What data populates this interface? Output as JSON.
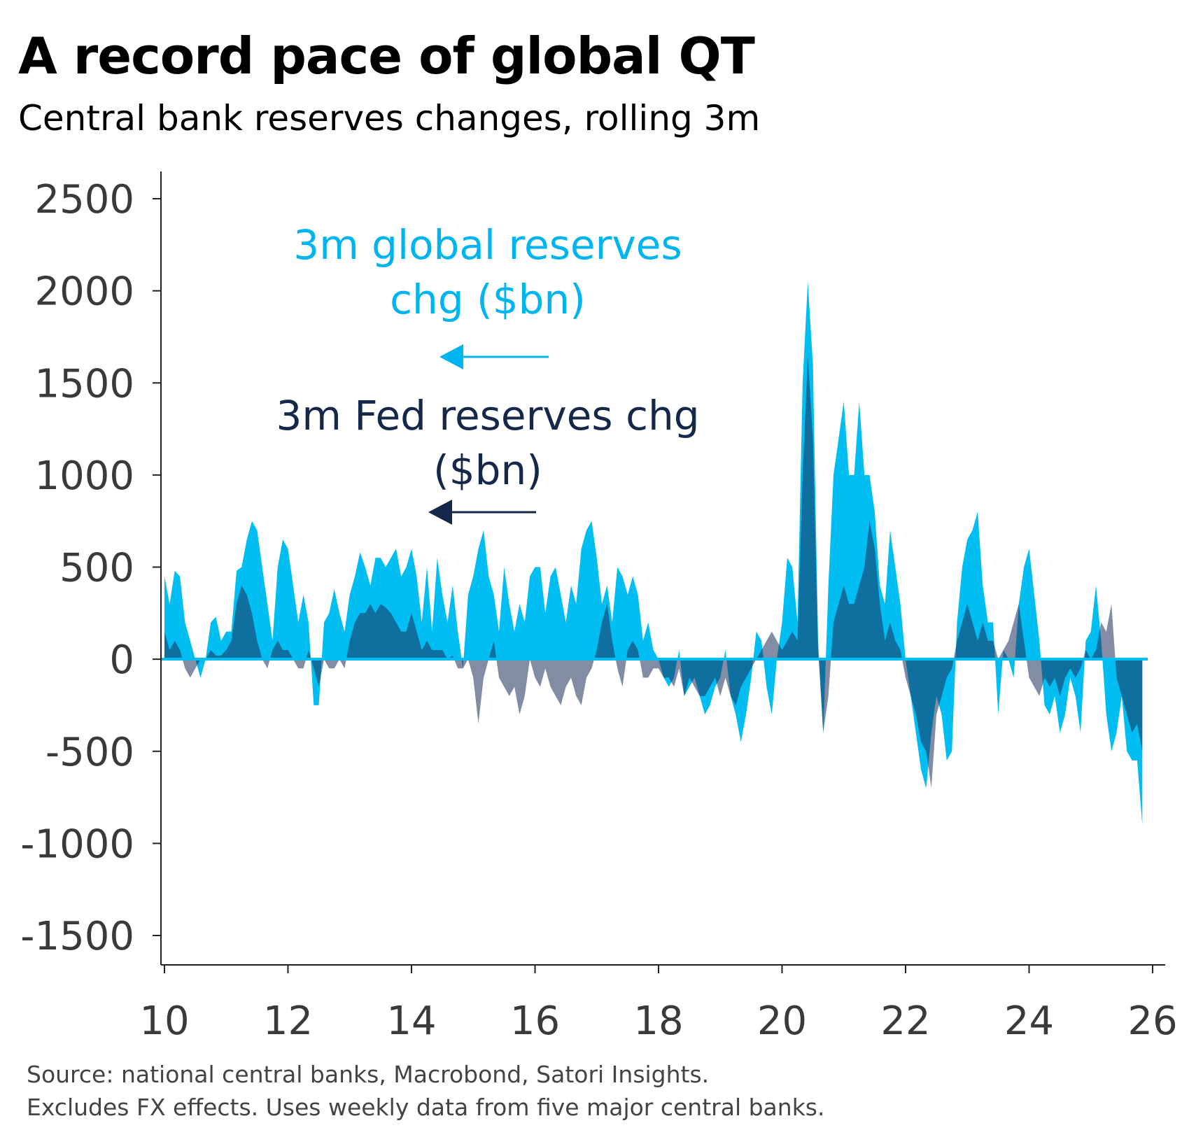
{
  "chart_data": {
    "type": "area",
    "title": "A record pace of global QT",
    "subtitle": "Central bank reserves changes, rolling 3m",
    "source_lines": [
      "Source: national central banks, Macrobond, Satori Insights.",
      "Excludes FX effects. Uses weekly data from five major central banks."
    ],
    "xlabel": "",
    "ylabel": "",
    "xlim": [
      10,
      26
    ],
    "ylim": [
      -1500,
      2500
    ],
    "x_ticks": [
      "10",
      "12",
      "14",
      "16",
      "18",
      "20",
      "22",
      "24",
      "26"
    ],
    "y_ticks": [
      "2500",
      "2000",
      "1500",
      "1000",
      "500",
      "0",
      "-500",
      "-1000",
      "-1500"
    ],
    "x_start": 10,
    "x_step_years": 0.0833333,
    "grid": false,
    "series": [
      {
        "name": "3m global reserves chg ($bn)",
        "label_lines": [
          "3m global reserves",
          "chg ($bn)"
        ],
        "color": "#00bdf2",
        "values": [
          450,
          300,
          480,
          450,
          200,
          100,
          0,
          -100,
          0,
          200,
          230,
          100,
          150,
          150,
          480,
          500,
          650,
          750,
          700,
          500,
          300,
          100,
          500,
          650,
          600,
          400,
          200,
          350,
          200,
          -250,
          -250,
          200,
          250,
          380,
          250,
          150,
          350,
          450,
          580,
          500,
          400,
          550,
          550,
          500,
          550,
          600,
          450,
          500,
          600,
          450,
          200,
          500,
          150,
          550,
          350,
          200,
          400,
          150,
          -50,
          350,
          450,
          600,
          700,
          450,
          350,
          150,
          500,
          300,
          150,
          300,
          200,
          450,
          500,
          500,
          250,
          450,
          500,
          350,
          200,
          400,
          300,
          600,
          700,
          750,
          550,
          300,
          400,
          200,
          500,
          450,
          350,
          450,
          350,
          100,
          200,
          50,
          0,
          -100,
          -150,
          -100,
          50,
          -200,
          -150,
          -100,
          -200,
          -300,
          -250,
          -150,
          -100,
          50,
          -200,
          -300,
          -450,
          -300,
          -100,
          150,
          100,
          -150,
          -300,
          0,
          200,
          550,
          500,
          200,
          1500,
          2050,
          1600,
          100,
          -400,
          400,
          1000,
          1200,
          1400,
          1000,
          1000,
          1400,
          1000,
          1000,
          800,
          400,
          300,
          700,
          500,
          300,
          0,
          -200,
          -400,
          -600,
          -700,
          -400,
          -200,
          -300,
          -550,
          -500,
          200,
          500,
          650,
          700,
          800,
          400,
          200,
          200,
          -300,
          50,
          0,
          -100,
          300,
          500,
          600,
          350,
          100,
          -250,
          -300,
          -200,
          -400,
          -300,
          -100,
          -200,
          -400,
          100,
          150,
          400,
          100,
          -300,
          -500,
          -400,
          -200,
          -500,
          -550,
          -550,
          -900
        ]
      },
      {
        "name": "3m Fed reserves chg ($bn)",
        "label_lines": [
          "3m Fed reserves chg",
          "($bn)"
        ],
        "color": "#1b2f5b",
        "values": [
          150,
          50,
          100,
          50,
          -50,
          -100,
          -50,
          0,
          0,
          50,
          20,
          20,
          50,
          100,
          300,
          400,
          350,
          250,
          100,
          0,
          -50,
          50,
          100,
          50,
          50,
          0,
          -50,
          -50,
          50,
          -50,
          -150,
          0,
          -50,
          -50,
          0,
          -50,
          100,
          200,
          250,
          250,
          300,
          250,
          300,
          280,
          250,
          200,
          150,
          150,
          250,
          150,
          50,
          100,
          50,
          50,
          50,
          0,
          20,
          -50,
          -50,
          0,
          -100,
          -350,
          -100,
          0,
          100,
          -100,
          -150,
          -200,
          -150,
          -300,
          -200,
          0,
          -100,
          -150,
          -50,
          -150,
          -200,
          -250,
          -150,
          -100,
          -200,
          -250,
          -100,
          -50,
          50,
          200,
          300,
          100,
          -50,
          -150,
          50,
          100,
          50,
          -100,
          -100,
          -50,
          -50,
          -100,
          -100,
          -150,
          -50,
          -200,
          -100,
          -150,
          -200,
          -200,
          -150,
          -100,
          -200,
          -100,
          -200,
          -250,
          -150,
          -100,
          -50,
          0,
          50,
          100,
          150,
          100,
          50,
          100,
          150,
          100,
          1000,
          1650,
          1200,
          50,
          -400,
          -200,
          200,
          300,
          400,
          300,
          300,
          400,
          500,
          750,
          600,
          300,
          100,
          200,
          100,
          50,
          -100,
          -200,
          -300,
          -450,
          -500,
          -700,
          -300,
          -200,
          -100,
          -50,
          100,
          200,
          300,
          200,
          100,
          200,
          100,
          100,
          0,
          50,
          100,
          200,
          300,
          100,
          -100,
          -150,
          -200,
          -100,
          -150,
          -100,
          -200,
          -100,
          -50,
          -100,
          -50,
          50,
          0,
          50,
          200,
          150,
          300,
          -100,
          -200,
          -300,
          -400,
          -350,
          -500
        ]
      }
    ]
  }
}
